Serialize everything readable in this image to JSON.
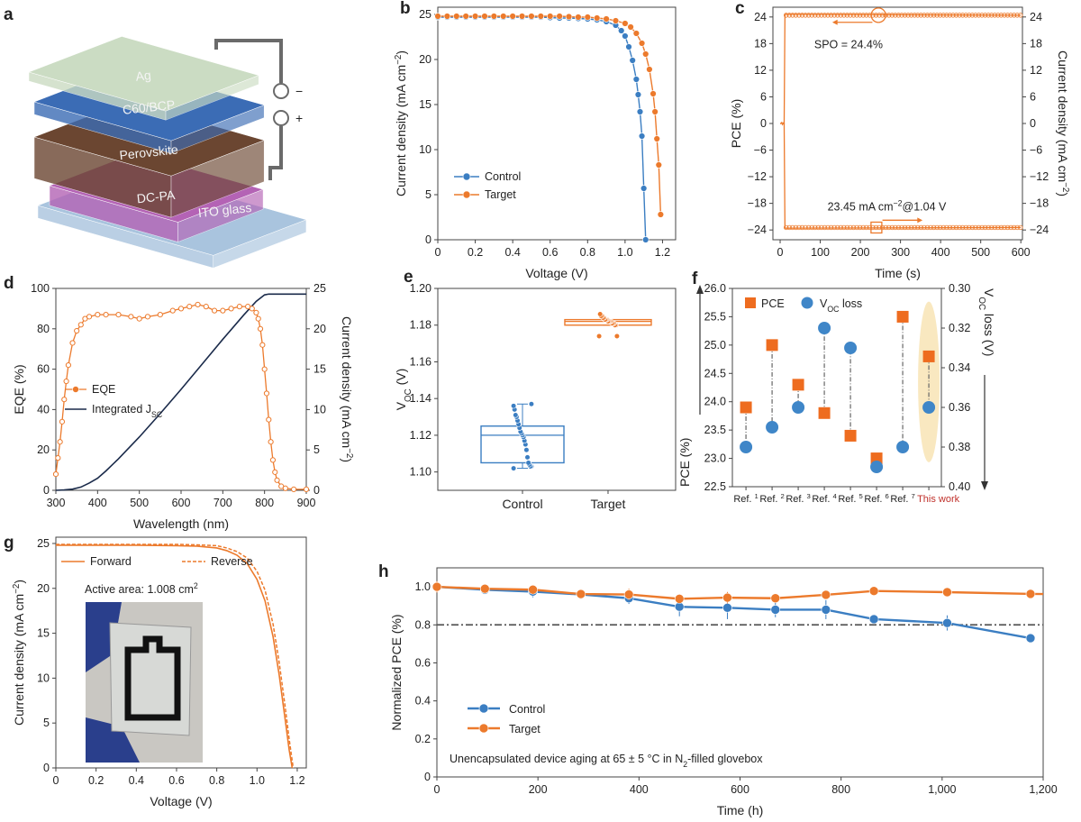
{
  "colors": {
    "control": "#3b7ec2",
    "target": "#ec7a2c",
    "pce_marker": "#ee6c1f",
    "voc_marker": "#3f86c8",
    "this_work": "#c0312b",
    "highlight": "#f8e2b0",
    "ref_line": "#555555",
    "jsc_line": "#1a2a4a"
  },
  "panel_a": {
    "label": "a",
    "layers": [
      {
        "name": "ITO glass",
        "color": "#a9c4de"
      },
      {
        "name": "DC-PA",
        "color": "#b463b5"
      },
      {
        "name": "Perovskite",
        "color": "#6b4631"
      },
      {
        "name": "C60/BCP",
        "color": "#3b6cb5"
      },
      {
        "name": "Ag",
        "color": "#cbdcc3"
      }
    ],
    "minus": "−",
    "plus": "+"
  },
  "chart_data": [
    {
      "id": "b",
      "label": "b",
      "type": "line",
      "xlabel": "Voltage (V)",
      "ylabel": "Current density (mA cm^{−2})",
      "xlim": [
        0,
        1.27
      ],
      "ylim": [
        0,
        25.8
      ],
      "xticks": [
        "0",
        "0.2",
        "0.4",
        "0.6",
        "0.8",
        "1.0",
        "1.2"
      ],
      "yticks": [
        "0",
        "5",
        "10",
        "15",
        "20",
        "25"
      ],
      "legend_position": "bottom-left",
      "series": [
        {
          "name": "Control",
          "color_key": "control",
          "x": [
            0,
            0.05,
            0.1,
            0.15,
            0.2,
            0.25,
            0.3,
            0.35,
            0.4,
            0.45,
            0.5,
            0.55,
            0.6,
            0.65,
            0.7,
            0.75,
            0.8,
            0.85,
            0.9,
            0.95,
            0.98,
            1.0,
            1.02,
            1.04,
            1.06,
            1.07,
            1.08,
            1.09,
            1.1,
            1.11
          ],
          "y": [
            24.7,
            24.7,
            24.7,
            24.7,
            24.7,
            24.7,
            24.7,
            24.7,
            24.7,
            24.7,
            24.7,
            24.7,
            24.65,
            24.6,
            24.6,
            24.55,
            24.5,
            24.4,
            24.2,
            23.8,
            23.2,
            22.6,
            21.4,
            19.9,
            17.8,
            16.1,
            14.2,
            11.5,
            5.7,
            0
          ]
        },
        {
          "name": "Target",
          "color_key": "target",
          "x": [
            0,
            0.05,
            0.1,
            0.15,
            0.2,
            0.25,
            0.3,
            0.35,
            0.4,
            0.45,
            0.5,
            0.55,
            0.6,
            0.65,
            0.7,
            0.75,
            0.8,
            0.85,
            0.9,
            0.95,
            1.0,
            1.03,
            1.06,
            1.09,
            1.11,
            1.13,
            1.15,
            1.16,
            1.17,
            1.18,
            1.19
          ],
          "y": [
            24.8,
            24.8,
            24.8,
            24.8,
            24.8,
            24.8,
            24.8,
            24.8,
            24.8,
            24.8,
            24.8,
            24.8,
            24.8,
            24.8,
            24.75,
            24.7,
            24.7,
            24.6,
            24.5,
            24.3,
            24.0,
            23.6,
            22.9,
            21.8,
            20.6,
            18.9,
            16.2,
            14.2,
            11.2,
            8.3,
            2.8
          ]
        }
      ]
    },
    {
      "id": "c",
      "label": "c",
      "type": "line",
      "xlabel": "Time (s)",
      "ylabel": "PCE (%)",
      "y2label": "Current density (mA cm^{−2})",
      "xlim": [
        -18,
        604
      ],
      "ylim": [
        -26.2,
        26.2
      ],
      "xticks": [
        "0",
        "100",
        "200",
        "300",
        "400",
        "500",
        "600"
      ],
      "yticks": [
        "−24",
        "−18",
        "−12",
        "−6",
        "0",
        "6",
        "12",
        "18",
        "24"
      ],
      "y2ticks": [
        "−24",
        "−18",
        "−12",
        "−6",
        "0",
        "6",
        "12",
        "18",
        "24"
      ],
      "annotations": [
        "SPO = 24.4%",
        "23.45 mA cm^{−2}@1.04 V"
      ],
      "series": [
        {
          "name": "PCE",
          "color_key": "target",
          "x": [
            0,
            2,
            4,
            6,
            8,
            10,
            12,
            600
          ],
          "y": [
            0,
            0,
            0.2,
            -0.2,
            0.1,
            0,
            24.6,
            24.4
          ]
        },
        {
          "name": "Current density",
          "color_key": "target",
          "x": [
            0,
            2,
            4,
            6,
            8,
            10,
            12,
            600
          ],
          "y": [
            0,
            0,
            0.2,
            -0.2,
            0.1,
            0,
            -23.6,
            -23.45
          ]
        }
      ]
    },
    {
      "id": "d",
      "label": "d",
      "type": "line",
      "xlabel": "Wavelength (nm)",
      "ylabel": "EQE (%)",
      "y2label": "Current density (mA cm^{−2})",
      "xlim": [
        300,
        900
      ],
      "ylim": [
        0,
        100
      ],
      "y2lim": [
        0,
        25
      ],
      "xticks": [
        "300",
        "400",
        "500",
        "600",
        "700",
        "800",
        "900"
      ],
      "yticks": [
        "0",
        "20",
        "40",
        "60",
        "80",
        "100"
      ],
      "y2ticks": [
        "0",
        "5",
        "10",
        "15",
        "20",
        "25"
      ],
      "legend_position": "middle-left",
      "series": [
        {
          "name": "EQE",
          "color_key": "target",
          "axis": "left",
          "x": [
            300,
            305,
            310,
            315,
            320,
            325,
            330,
            340,
            350,
            360,
            370,
            380,
            400,
            420,
            450,
            480,
            500,
            520,
            550,
            580,
            600,
            620,
            640,
            660,
            680,
            700,
            720,
            740,
            760,
            770,
            780,
            785,
            790,
            795,
            800,
            805,
            810,
            815,
            820,
            825,
            830,
            840,
            850,
            870,
            900
          ],
          "y": [
            8,
            16,
            24,
            34,
            45,
            54,
            62,
            73,
            79,
            82,
            85,
            86,
            87,
            87,
            87,
            86,
            85,
            86,
            87,
            89,
            90,
            91,
            92,
            91,
            89,
            89,
            90,
            91,
            91,
            90,
            88,
            85,
            80,
            72,
            60,
            48,
            35,
            24,
            15,
            9,
            5,
            2,
            1,
            0.5,
            0.5
          ]
        },
        {
          "name": "Integrated J_{SC}",
          "color_key": "jsc_line",
          "axis": "right",
          "x": [
            300,
            320,
            340,
            360,
            380,
            400,
            420,
            450,
            500,
            550,
            600,
            650,
            700,
            750,
            780,
            800,
            810,
            900
          ],
          "y": [
            0,
            0.05,
            0.15,
            0.4,
            0.9,
            1.5,
            2.4,
            3.9,
            6.6,
            9.5,
            12.5,
            15.6,
            18.7,
            21.7,
            23.4,
            24.2,
            24.3,
            24.3
          ]
        }
      ]
    },
    {
      "id": "e",
      "label": "e",
      "type": "box",
      "ylabel": "V_{OC} (V)",
      "ylim": [
        1.09,
        1.2
      ],
      "categories": [
        "Control",
        "Target"
      ],
      "yticks": [
        "1.10",
        "1.12",
        "1.14",
        "1.16",
        "1.18",
        "1.20"
      ],
      "boxes": [
        {
          "category": "Control",
          "color_key": "control",
          "q1": 1.105,
          "median": 1.12,
          "q3": 1.125,
          "whisker_low": 1.102,
          "whisker_high": 1.137,
          "points": [
            1.102,
            1.103,
            1.103,
            1.104,
            1.105,
            1.108,
            1.112,
            1.115,
            1.117,
            1.119,
            1.12,
            1.121,
            1.122,
            1.124,
            1.126,
            1.128,
            1.13,
            1.131,
            1.134,
            1.136,
            1.137
          ]
        },
        {
          "category": "Target",
          "color_key": "target",
          "q1": 1.18,
          "median": 1.182,
          "q3": 1.183,
          "whisker_low": 1.18,
          "whisker_high": 1.183,
          "points": [
            1.174,
            1.174,
            1.18,
            1.18,
            1.181,
            1.181,
            1.181,
            1.182,
            1.182,
            1.182,
            1.182,
            1.183,
            1.183,
            1.183,
            1.184,
            1.184,
            1.185,
            1.185,
            1.186
          ]
        }
      ]
    },
    {
      "id": "f",
      "label": "f",
      "type": "scatter",
      "ylabel": "PCE (%)",
      "y2label": "V_{OC} loss (V)",
      "ylim": [
        22.5,
        26.0
      ],
      "y2lim": [
        0.4,
        0.3
      ],
      "categories": [
        "Ref. ^{1}",
        "Ref. ^{2}",
        "Ref. ^{3}",
        "Ref. ^{4}",
        "Ref. ^{5}",
        "Ref. ^{6}",
        "Ref. ^{7}",
        "This work"
      ],
      "yticks": [
        "22.5",
        "23.0",
        "23.5",
        "24.0",
        "24.5",
        "25.0",
        "25.5",
        "26.0"
      ],
      "y2ticks": [
        "0.30",
        "0.32",
        "0.34",
        "0.36",
        "0.38",
        "0.40"
      ],
      "legend_position": "top-left",
      "series": [
        {
          "name": "PCE",
          "marker": "square",
          "color_key": "pce_marker",
          "axis": "left",
          "values": [
            23.9,
            25.0,
            24.3,
            23.8,
            23.4,
            23.0,
            25.5,
            24.8
          ]
        },
        {
          "name": "V_{OC} loss",
          "marker": "circle",
          "color_key": "voc_marker",
          "axis": "right",
          "values": [
            0.38,
            0.37,
            0.36,
            0.32,
            0.33,
            0.39,
            0.38,
            0.36
          ]
        }
      ]
    },
    {
      "id": "g",
      "label": "g",
      "type": "line",
      "xlabel": "Voltage (V)",
      "ylabel": "Current density (mA cm^{−2})",
      "xlim": [
        0,
        1.245
      ],
      "ylim": [
        0,
        25.7
      ],
      "xticks": [
        "0",
        "0.2",
        "0.4",
        "0.6",
        "0.8",
        "1.0",
        "1.2"
      ],
      "yticks": [
        "0",
        "5",
        "10",
        "15",
        "20",
        "25"
      ],
      "inset_text": "Active area: 1.008 cm^{2}",
      "legend_position": "top-left",
      "series": [
        {
          "name": "Forward",
          "color_key": "target",
          "dash": "solid",
          "x": [
            0,
            0.2,
            0.4,
            0.6,
            0.7,
            0.8,
            0.85,
            0.9,
            0.95,
            1.0,
            1.04,
            1.08,
            1.11,
            1.14,
            1.16,
            1.175
          ],
          "y": [
            24.8,
            24.8,
            24.8,
            24.75,
            24.7,
            24.5,
            24.2,
            23.7,
            22.8,
            21.0,
            18.6,
            14.6,
            10.4,
            5.4,
            2.0,
            0
          ]
        },
        {
          "name": "Reverse",
          "color_key": "target",
          "dash": "dashed",
          "x": [
            0,
            0.2,
            0.4,
            0.6,
            0.7,
            0.8,
            0.85,
            0.9,
            0.95,
            1.0,
            1.04,
            1.08,
            1.11,
            1.14,
            1.16,
            1.18
          ],
          "y": [
            24.9,
            24.9,
            24.9,
            24.9,
            24.85,
            24.75,
            24.5,
            24.1,
            23.4,
            21.9,
            19.8,
            16.0,
            11.8,
            6.8,
            3.2,
            0
          ]
        }
      ]
    },
    {
      "id": "h",
      "label": "h",
      "type": "line",
      "xlabel": "Time (h)",
      "ylabel": "Normalized PCE (%)",
      "xlim": [
        0,
        1200
      ],
      "ylim": [
        0,
        1.1
      ],
      "xticks": [
        "0",
        "200",
        "400",
        "600",
        "800",
        "1,000",
        "1,200"
      ],
      "yticks": [
        "0",
        "0.2",
        "0.4",
        "0.6",
        "0.8",
        "1.0"
      ],
      "reference_line": 0.8,
      "annotation": "Unencapsulated device aging at 65 ± 5 °C in N_{2}-filled glovebox",
      "legend_position": "bottom-left",
      "series": [
        {
          "name": "Control",
          "color_key": "control",
          "x": [
            0,
            95,
            190,
            285,
            380,
            480,
            575,
            670,
            770,
            865,
            1010,
            1175
          ],
          "y": [
            1.0,
            0.985,
            0.975,
            0.96,
            0.94,
            0.895,
            0.89,
            0.88,
            0.88,
            0.83,
            0.81,
            0.73
          ],
          "err": [
            0.02,
            0.02,
            0.03,
            0.01,
            0.03,
            0.05,
            0.06,
            0.04,
            0.05,
            0.02,
            0.04,
            0.01
          ]
        },
        {
          "name": "Target",
          "color_key": "target",
          "x": [
            0,
            95,
            190,
            285,
            380,
            480,
            575,
            670,
            770,
            865,
            1010,
            1175,
            1200
          ],
          "y": [
            1.0,
            0.99,
            0.985,
            0.962,
            0.96,
            0.937,
            0.943,
            0.94,
            0.958,
            0.978,
            0.972,
            0.963,
            0.962
          ],
          "err": [
            0.03,
            0.02,
            0.02,
            0.01,
            0.03,
            0.02,
            0.03,
            0.02,
            0.02,
            0.02,
            0.01,
            0.01,
            0
          ]
        }
      ]
    }
  ]
}
